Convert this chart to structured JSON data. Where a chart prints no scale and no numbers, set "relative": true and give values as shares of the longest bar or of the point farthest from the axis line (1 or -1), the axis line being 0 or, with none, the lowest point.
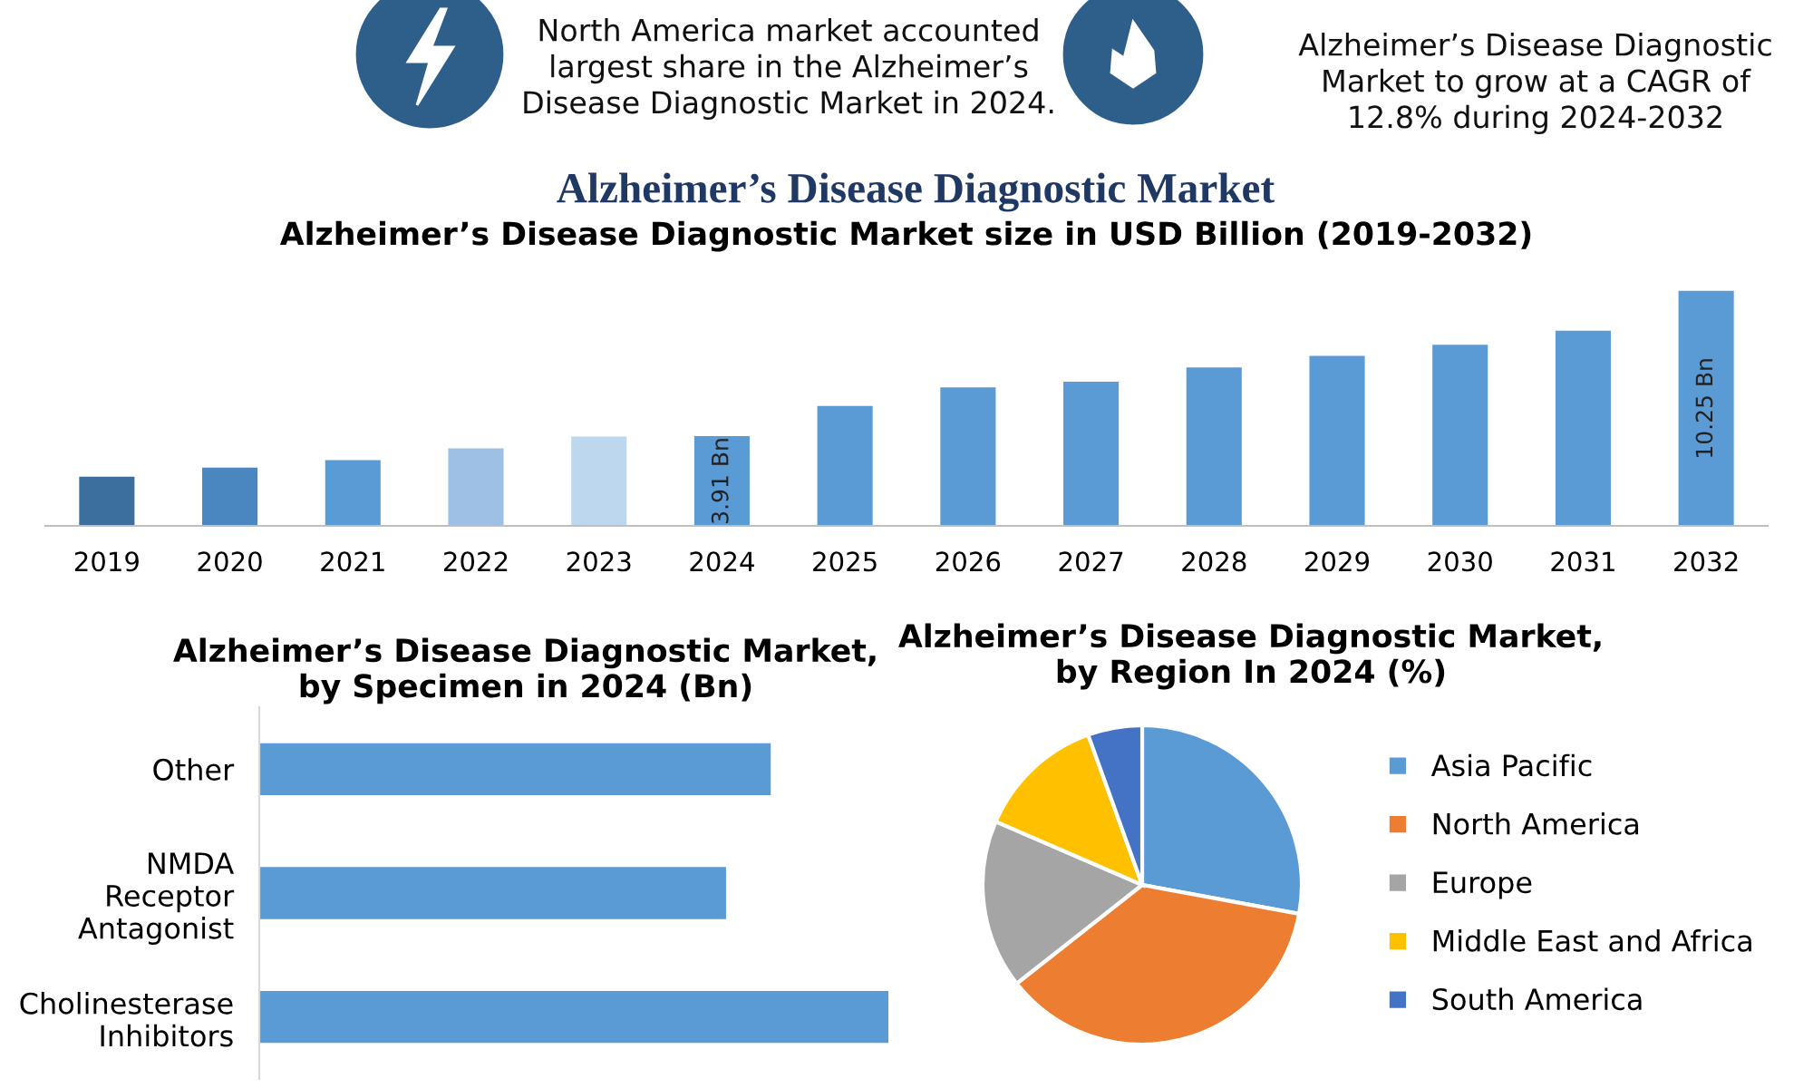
{
  "chart_data": [
    {
      "type": "other",
      "title": "Alzheimer’s Disease Diagnostic Market",
      "annotations": [
        "North America market accounted\nlargest share in the Alzheimer’s\nDisease Diagnostic Market in 2024.",
        "Alzheimer’s Disease Diagnostic\nMarket to grow at a CAGR of\n12.8% during 2024-2032"
      ]
    },
    {
      "type": "bar",
      "title": "Alzheimer’s Disease Diagnostic Market size in USD Billion (2019-2032)",
      "categories": [
        "2019",
        "2020",
        "2021",
        "2022",
        "2023",
        "2024",
        "2025",
        "2026",
        "2027",
        "2028",
        "2029",
        "2030",
        "2031",
        "2032"
      ],
      "values": [
        2.14,
        2.54,
        2.87,
        3.38,
        3.89,
        3.91,
        5.23,
        6.04,
        6.29,
        6.91,
        7.41,
        7.9,
        8.51,
        10.25
      ],
      "colors": [
        "#3d6f9e",
        "#4a86c0",
        "#5b9bd5",
        "#9dc0e4",
        "#bdd7ee",
        "#5b9bd5",
        "#5b9bd5",
        "#5b9bd5",
        "#5b9bd5",
        "#5b9bd5",
        "#5b9bd5",
        "#5b9bd5",
        "#5b9bd5",
        "#5b9bd5"
      ],
      "value_labels": [
        null,
        null,
        null,
        null,
        null,
        "3.91 Bn",
        null,
        null,
        null,
        null,
        null,
        null,
        null,
        "10.25 Bn"
      ]
    },
    {
      "type": "bar",
      "orientation": "horizontal",
      "title": "Alzheimer’s Disease Diagnostic Market, by Specimen in 2024 (Bn)",
      "relative": true,
      "categories": [
        "Other",
        "NMDA Receptor Antagonist",
        "Cholinesterase Inhibitors"
      ],
      "values": [
        0.813,
        0.742,
        1
      ],
      "color": "#5b9bd5"
    },
    {
      "type": "pie",
      "title": "Alzheimer’s Disease Diagnostic Market, by Region In 2024 (%)",
      "categories": [
        "Asia Pacific",
        "North America",
        "Europe",
        "Middle East and Africa",
        "South America"
      ],
      "values": [
        27.9,
        36.5,
        17.1,
        13.0,
        5.5
      ],
      "colors": [
        "#5b9bd5",
        "#ed7d31",
        "#a5a5a5",
        "#ffc000",
        "#4472c4"
      ],
      "legend": "right"
    }
  ]
}
